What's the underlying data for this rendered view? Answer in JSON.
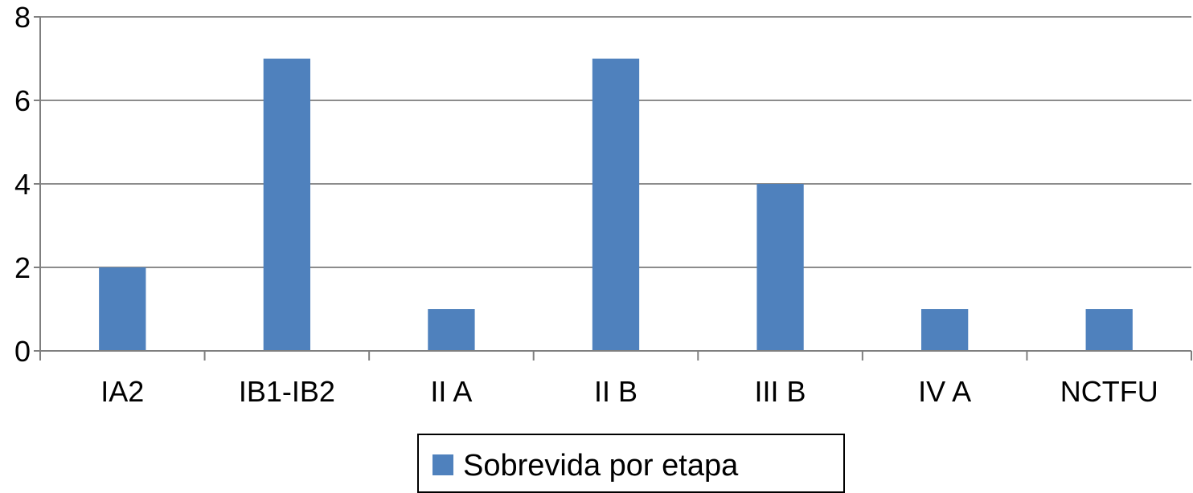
{
  "chart_data": {
    "type": "bar",
    "categories": [
      "IA2",
      "IB1-IB2",
      "II A",
      "II B",
      "III B",
      "IV A",
      "NCTFU"
    ],
    "series": [
      {
        "name": "Sobrevida por etapa",
        "values": [
          2,
          7,
          1,
          7,
          4,
          1,
          1
        ]
      }
    ],
    "ylim": [
      0,
      8
    ],
    "yticks": [
      0,
      2,
      4,
      6,
      8
    ],
    "grid": true,
    "legend_position": "bottom",
    "colors": {
      "bar": "#4f81bd",
      "grid": "#8c8c8c",
      "axis": "#7f7f7f"
    }
  }
}
